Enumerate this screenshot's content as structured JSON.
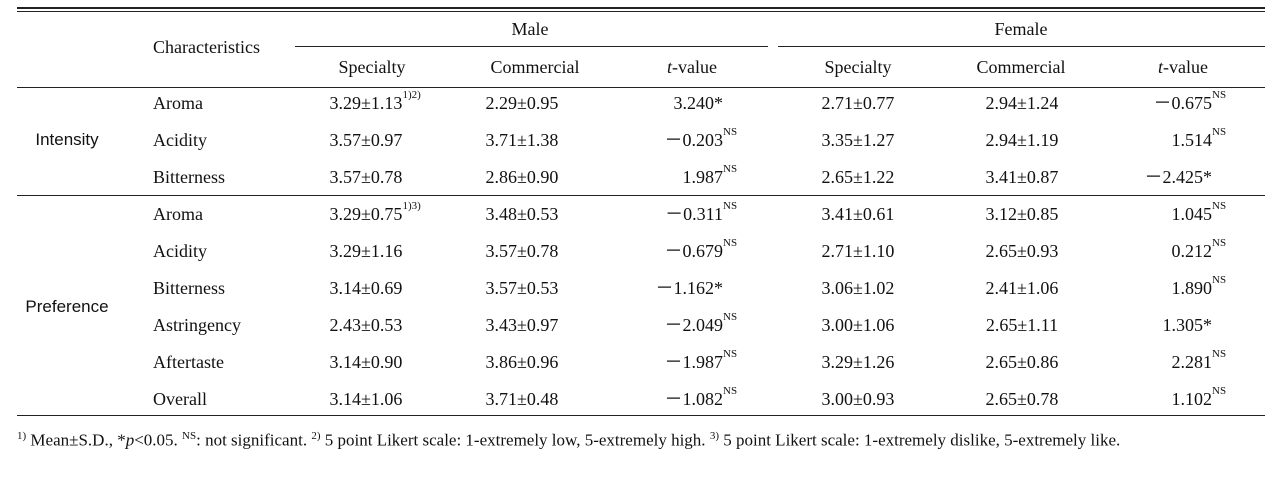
{
  "table": {
    "header": {
      "corner": "Characteristics",
      "groups": [
        "Male",
        "Female"
      ],
      "columns": [
        {
          "text": "Specialty"
        },
        {
          "text": "Commercial"
        },
        {
          "italic": "t",
          "text": "-value"
        },
        {
          "text": "Specialty"
        },
        {
          "text": "Commercial"
        },
        {
          "italic": "t",
          "text": "-value"
        }
      ]
    },
    "sections": [
      {
        "label": "Intensity",
        "rows": [
          {
            "item": "Aroma",
            "cells": [
              {
                "text": "3.29±1.13",
                "sup": "1)2)"
              },
              {
                "text": "2.29±0.95"
              },
              {
                "text": "3.240*"
              },
              {
                "text": "2.71±0.77"
              },
              {
                "text": "2.94±1.24"
              },
              {
                "text": "－0.675",
                "sup": "NS"
              }
            ]
          },
          {
            "item": "Acidity",
            "cells": [
              {
                "text": "3.57±0.97"
              },
              {
                "text": "3.71±1.38"
              },
              {
                "text": "－0.203",
                "sup": "NS"
              },
              {
                "text": "3.35±1.27"
              },
              {
                "text": "2.94±1.19"
              },
              {
                "text": "1.514",
                "sup": "NS"
              }
            ]
          },
          {
            "item": "Bitterness",
            "cells": [
              {
                "text": "3.57±0.78"
              },
              {
                "text": "2.86±0.90"
              },
              {
                "text": "1.987",
                "sup": "NS"
              },
              {
                "text": "2.65±1.22"
              },
              {
                "text": "3.41±0.87"
              },
              {
                "text": "－2.425*"
              }
            ]
          }
        ]
      },
      {
        "label": "Preference",
        "rows": [
          {
            "item": "Aroma",
            "cells": [
              {
                "text": "3.29±0.75",
                "sup": "1)3)"
              },
              {
                "text": "3.48±0.53"
              },
              {
                "text": "－0.311",
                "sup": "NS"
              },
              {
                "text": "3.41±0.61"
              },
              {
                "text": "3.12±0.85"
              },
              {
                "text": "1.045",
                "sup": "NS"
              }
            ]
          },
          {
            "item": "Acidity",
            "cells": [
              {
                "text": "3.29±1.16"
              },
              {
                "text": "3.57±0.78"
              },
              {
                "text": "－0.679",
                "sup": "NS"
              },
              {
                "text": "2.71±1.10"
              },
              {
                "text": "2.65±0.93"
              },
              {
                "text": "0.212",
                "sup": "NS"
              }
            ]
          },
          {
            "item": "Bitterness",
            "cells": [
              {
                "text": "3.14±0.69"
              },
              {
                "text": "3.57±0.53"
              },
              {
                "text": "－1.162*"
              },
              {
                "text": "3.06±1.02"
              },
              {
                "text": "2.41±1.06"
              },
              {
                "text": "1.890",
                "sup": "NS"
              }
            ]
          },
          {
            "item": "Astringency",
            "cells": [
              {
                "text": "2.43±0.53"
              },
              {
                "text": "3.43±0.97"
              },
              {
                "text": "－2.049",
                "sup": "NS"
              },
              {
                "text": "3.00±1.06"
              },
              {
                "text": "2.65±1.11"
              },
              {
                "text": "1.305*"
              }
            ]
          },
          {
            "item": "Aftertaste",
            "cells": [
              {
                "text": "3.14±0.90"
              },
              {
                "text": "3.86±0.96"
              },
              {
                "text": "－1.987",
                "sup": "NS"
              },
              {
                "text": "3.29±1.26"
              },
              {
                "text": "2.65±0.86"
              },
              {
                "text": "2.281",
                "sup": "NS"
              }
            ]
          },
          {
            "item": "Overall",
            "cells": [
              {
                "text": "3.14±1.06"
              },
              {
                "text": "3.71±0.48"
              },
              {
                "text": "－1.082",
                "sup": "NS"
              },
              {
                "text": "3.00±0.93"
              },
              {
                "text": "2.65±0.78"
              },
              {
                "text": "1.102",
                "sup": "NS"
              }
            ]
          }
        ]
      }
    ]
  },
  "footnote": [
    {
      "sup": "1)"
    },
    {
      "text": " Mean±S.D., *"
    },
    {
      "italic": "p"
    },
    {
      "text": "<0.05. "
    },
    {
      "sup": "NS"
    },
    {
      "text": ": not significant. "
    },
    {
      "sup": "2)"
    },
    {
      "text": " 5 point Likert scale: 1-extremely low, 5-extremely high. "
    },
    {
      "sup": "3)"
    },
    {
      "text": " 5 point Likert scale: 1-extremely dislike, 5-extremely like."
    }
  ]
}
